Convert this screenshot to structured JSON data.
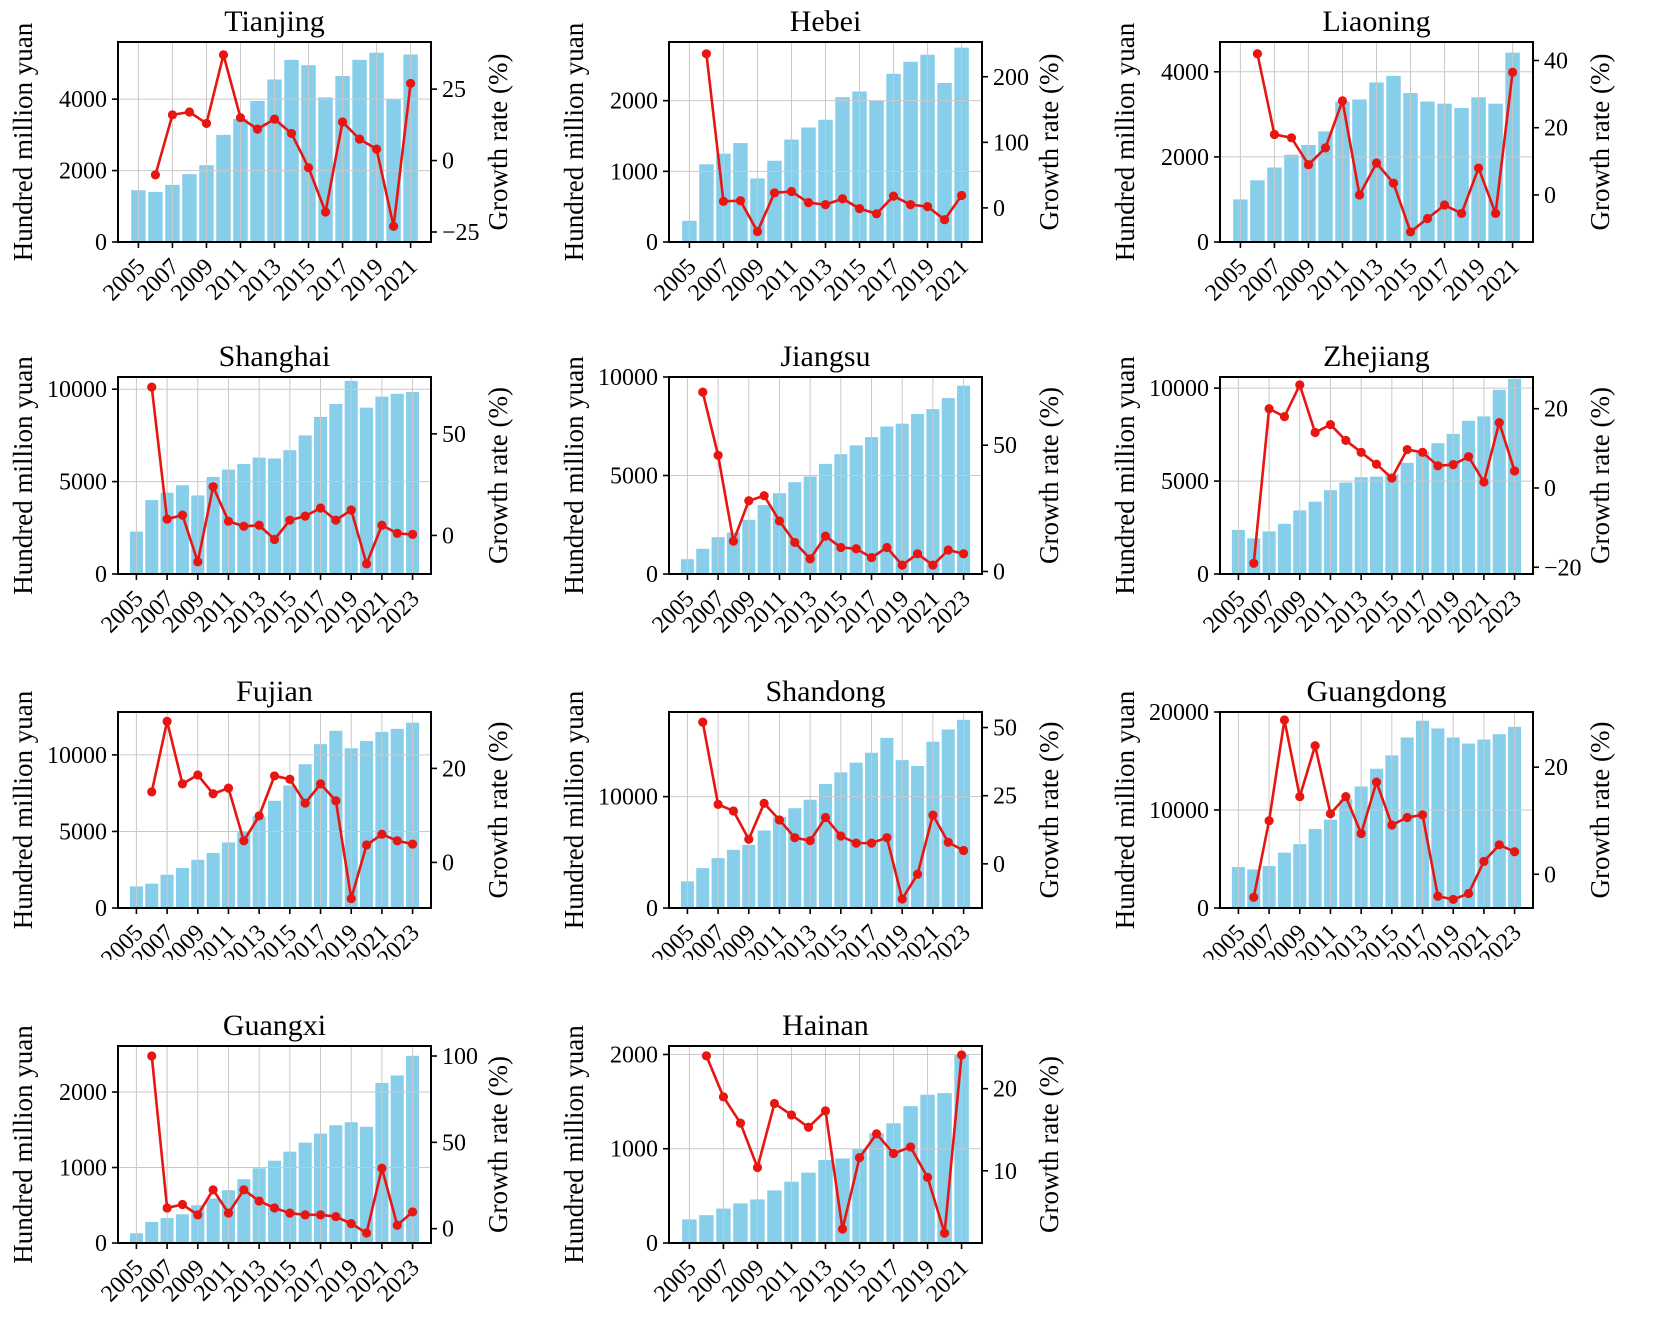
{
  "figure": {
    "description": "Grid of 11 province subplots, bars = output value, red line = growth rate",
    "axis_labels": {
      "left": "Hundred million yuan",
      "right": "Growth rate (%)"
    },
    "colors": {
      "bar": "#87CEEB",
      "line": "#E81510",
      "grid": "#c9c9c9",
      "axis": "#000000",
      "background": "#ffffff",
      "text": "#000000"
    }
  },
  "chart_data": [
    {
      "type": "bar+line",
      "title": "Tianjing",
      "row": 1,
      "col": 1,
      "start_year": 2005,
      "last_year": 2021,
      "x_ticks": [
        2005,
        2007,
        2009,
        2011,
        2013,
        2015,
        2017,
        2019,
        2021
      ],
      "left_ticks": [
        0,
        2000,
        4000
      ],
      "left_max": 5600,
      "right_ticks": [
        -25,
        0,
        25
      ],
      "right_min": -28.5,
      "right_max": 41.5,
      "bar_values": [
        1450,
        1400,
        1600,
        1900,
        2150,
        3000,
        3450,
        3950,
        4550,
        5100,
        4950,
        4050,
        4650,
        5100,
        5300,
        4000,
        5250
      ],
      "line_start_year": 2006,
      "line_values": [
        -5,
        16,
        17,
        13,
        37,
        15,
        11,
        14.5,
        9.5,
        -2.5,
        -18,
        13.5,
        7.5,
        4,
        -23,
        27
      ]
    },
    {
      "type": "bar+line",
      "title": "Hebei",
      "row": 1,
      "col": 2,
      "start_year": 2005,
      "last_year": 2021,
      "x_ticks": [
        2005,
        2007,
        2009,
        2011,
        2013,
        2015,
        2017,
        2019,
        2021
      ],
      "left_ticks": [
        0,
        1000,
        2000
      ],
      "left_max": 2830,
      "right_ticks": [
        0,
        100,
        200
      ],
      "right_min": -52,
      "right_max": 253,
      "bar_values": [
        300,
        1100,
        1250,
        1400,
        900,
        1150,
        1450,
        1620,
        1730,
        2050,
        2130,
        2000,
        2380,
        2550,
        2650,
        2250,
        2750
      ],
      "line_start_year": 2006,
      "line_values": [
        235,
        10,
        11,
        -36,
        23,
        25,
        8,
        5,
        14,
        -1,
        -9,
        18,
        5,
        2,
        -18,
        19
      ]
    },
    {
      "type": "bar+line",
      "title": "Liaoning",
      "row": 1,
      "col": 3,
      "start_year": 2005,
      "last_year": 2021,
      "x_ticks": [
        2005,
        2007,
        2009,
        2011,
        2013,
        2015,
        2017,
        2019,
        2021
      ],
      "left_ticks": [
        0,
        2000,
        4000
      ],
      "left_max": 4700,
      "right_ticks": [
        0,
        20,
        40
      ],
      "right_min": -14,
      "right_max": 45.5,
      "bar_values": [
        1000,
        1450,
        1750,
        2050,
        2280,
        2600,
        3300,
        3350,
        3750,
        3900,
        3500,
        3300,
        3250,
        3150,
        3400,
        3250,
        4450
      ],
      "line_start_year": 2006,
      "line_values": [
        42,
        18,
        17,
        9,
        14,
        28,
        0,
        9.5,
        3.5,
        -11,
        -7,
        -3,
        -5.5,
        8,
        -5.5,
        36.5
      ]
    },
    {
      "type": "bar+line",
      "title": "Shanghai",
      "row": 2,
      "col": 1,
      "start_year": 2005,
      "last_year": 2023,
      "x_ticks": [
        2005,
        2007,
        2009,
        2011,
        2013,
        2015,
        2017,
        2019,
        2021,
        2023
      ],
      "left_ticks": [
        0,
        5000,
        10000
      ],
      "left_max": 10660,
      "right_ticks": [
        0,
        50
      ],
      "right_min": -19,
      "right_max": 78,
      "bar_values": [
        2300,
        4000,
        4400,
        4800,
        4250,
        5250,
        5650,
        5950,
        6300,
        6250,
        6700,
        7500,
        8500,
        9200,
        10450,
        9000,
        9600,
        9750,
        9850
      ],
      "line_start_year": 2006,
      "line_values": [
        73,
        8,
        10,
        -13,
        24,
        7,
        4.5,
        5,
        -2,
        7.5,
        9.5,
        13.5,
        7.5,
        12.5,
        -14,
        5,
        1,
        0.5
      ]
    },
    {
      "type": "bar+line",
      "title": "Jiangsu",
      "row": 2,
      "col": 2,
      "start_year": 2005,
      "last_year": 2023,
      "x_ticks": [
        2005,
        2007,
        2009,
        2011,
        2013,
        2015,
        2017,
        2019,
        2021,
        2023
      ],
      "left_ticks": [
        0,
        5000,
        10000
      ],
      "left_max": 10000,
      "right_ticks": [
        0,
        50
      ],
      "right_min": -1,
      "right_max": 77,
      "bar_values": [
        750,
        1280,
        1870,
        2100,
        2750,
        3500,
        4100,
        4660,
        4950,
        5590,
        6080,
        6530,
        6950,
        7490,
        7630,
        8120,
        8370,
        8930,
        9560
      ],
      "line_start_year": 2006,
      "line_values": [
        71,
        46,
        12,
        28,
        30,
        20,
        11.5,
        5,
        14,
        9.5,
        9,
        5.5,
        9.5,
        2.5,
        7,
        2.5,
        8.5,
        7
      ]
    },
    {
      "type": "bar+line",
      "title": "Zhejiang",
      "row": 2,
      "col": 3,
      "start_year": 2005,
      "last_year": 2023,
      "x_ticks": [
        2005,
        2007,
        2009,
        2011,
        2013,
        2015,
        2017,
        2019,
        2021,
        2023
      ],
      "left_ticks": [
        0,
        5000,
        10000
      ],
      "left_max": 10600,
      "right_ticks": [
        -20,
        0,
        20
      ],
      "right_min": -21.7,
      "right_max": 28,
      "bar_values": [
        2370,
        1920,
        2290,
        2700,
        3420,
        3890,
        4510,
        4920,
        5210,
        5240,
        5370,
        5980,
        6570,
        7040,
        7540,
        8240,
        8480,
        9910,
        10500
      ],
      "line_start_year": 2006,
      "line_values": [
        -19,
        20,
        18,
        26,
        14,
        16,
        12,
        9,
        6,
        2.5,
        9.7,
        9,
        5.6,
        5.9,
        7.9,
        1.5,
        16.5,
        4.3
      ]
    },
    {
      "type": "bar+line",
      "title": "Fujian",
      "row": 3,
      "col": 1,
      "start_year": 2005,
      "last_year": 2023,
      "x_ticks": [
        2005,
        2007,
        2009,
        2011,
        2013,
        2015,
        2017,
        2019,
        2021,
        2023
      ],
      "left_ticks": [
        0,
        5000,
        10000
      ],
      "left_max": 12800,
      "right_ticks": [
        0,
        20
      ],
      "right_min": -9.7,
      "right_max": 32,
      "bar_values": [
        1410,
        1590,
        2170,
        2610,
        3150,
        3590,
        4280,
        4960,
        5980,
        7000,
        8000,
        9390,
        10700,
        11570,
        10430,
        10900,
        11500,
        11700,
        12100
      ],
      "line_start_year": 2006,
      "line_values": [
        15,
        30,
        16.7,
        18.6,
        14.6,
        15.8,
        4.6,
        9.9,
        18.4,
        17.7,
        12.6,
        16.7,
        13.1,
        -7.7,
        3.7,
        6,
        4.6,
        3.9
      ]
    },
    {
      "type": "bar+line",
      "title": "Shandong",
      "row": 3,
      "col": 2,
      "start_year": 2005,
      "last_year": 2023,
      "x_ticks": [
        2005,
        2007,
        2009,
        2011,
        2013,
        2015,
        2017,
        2019,
        2021,
        2023
      ],
      "left_ticks": [
        0,
        10000
      ],
      "left_max": 17600,
      "right_ticks": [
        0,
        25,
        50
      ],
      "right_min": -16.2,
      "right_max": 55.7,
      "bar_values": [
        2390,
        3580,
        4480,
        5220,
        5670,
        6960,
        8170,
        8960,
        9720,
        11130,
        12180,
        13050,
        13940,
        15280,
        13280,
        12750,
        14930,
        16030,
        16900
      ],
      "line_start_year": 2006,
      "line_values": [
        52,
        21.8,
        19.4,
        9,
        22.2,
        16.1,
        9.6,
        8.5,
        17,
        10.2,
        7.6,
        7.6,
        9.6,
        -12.9,
        -3.8,
        17.9,
        7.9,
        4.9
      ]
    },
    {
      "type": "bar+line",
      "title": "Guangdong",
      "row": 3,
      "col": 3,
      "start_year": 2005,
      "last_year": 2023,
      "x_ticks": [
        2005,
        2007,
        2009,
        2011,
        2013,
        2015,
        2017,
        2019,
        2021,
        2023
      ],
      "left_ticks": [
        0,
        10000,
        20000
      ],
      "left_max": 20000,
      "right_ticks": [
        0,
        20
      ],
      "right_min": -6.3,
      "right_max": 30.3,
      "bar_values": [
        4180,
        3940,
        4280,
        5650,
        6510,
        8050,
        9010,
        11100,
        12400,
        14210,
        15580,
        17400,
        19110,
        18320,
        17400,
        16780,
        17190,
        17740,
        18490
      ],
      "line_start_year": 2006,
      "line_values": [
        -4.3,
        10,
        28.8,
        14.5,
        24,
        11.3,
        14.5,
        7.6,
        17.2,
        9.2,
        10.6,
        11.1,
        -4.1,
        -4.7,
        -3.6,
        2.4,
        5.5,
        4.2
      ]
    },
    {
      "type": "bar+line",
      "title": "Guangxi",
      "row": 4,
      "col": 1,
      "start_year": 2005,
      "last_year": 2023,
      "x_ticks": [
        2005,
        2007,
        2009,
        2011,
        2013,
        2015,
        2017,
        2019,
        2021,
        2023
      ],
      "left_ticks": [
        0,
        1000,
        2000
      ],
      "left_max": 2610,
      "right_ticks": [
        0,
        50,
        100
      ],
      "right_min": -8.3,
      "right_max": 105.8,
      "bar_values": [
        130,
        280,
        330,
        380,
        500,
        590,
        700,
        845,
        990,
        1090,
        1210,
        1330,
        1450,
        1560,
        1600,
        1540,
        2120,
        2220,
        2480
      ],
      "line_start_year": 2006,
      "line_values": [
        100,
        12,
        14,
        8,
        22.5,
        9,
        22.5,
        16,
        12,
        9,
        8,
        8,
        7,
        2.9,
        -2.5,
        35,
        2,
        9.7
      ]
    },
    {
      "type": "bar+line",
      "title": "Hainan",
      "row": 4,
      "col": 2,
      "start_year": 2005,
      "last_year": 2021,
      "x_ticks": [
        2005,
        2007,
        2009,
        2011,
        2013,
        2015,
        2017,
        2019,
        2021
      ],
      "left_ticks": [
        0,
        1000,
        2000
      ],
      "left_max": 2090,
      "right_ticks": [
        10,
        20
      ],
      "right_min": 1.2,
      "right_max": 25.2,
      "bar_values": [
        250,
        295,
        365,
        420,
        462,
        558,
        650,
        747,
        880,
        897,
        1000,
        1165,
        1270,
        1452,
        1573,
        1590,
        2000
      ],
      "line_start_year": 2006,
      "line_values": [
        24,
        19,
        15.8,
        10.4,
        18.2,
        16.8,
        15.3,
        17.3,
        2.9,
        11.6,
        14.5,
        12.1,
        12.9,
        9.2,
        2.4,
        24.1
      ]
    }
  ]
}
